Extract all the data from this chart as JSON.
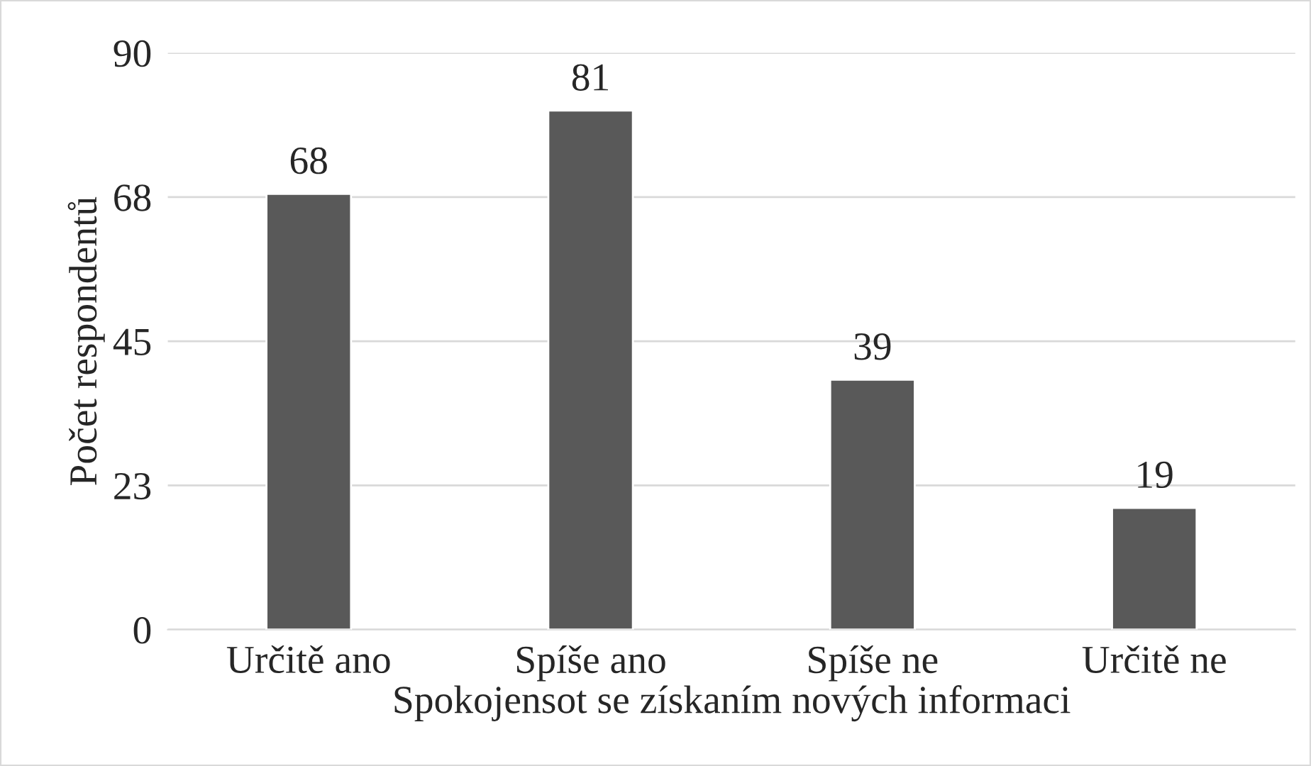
{
  "chart_data": {
    "type": "bar",
    "xlabel": "Spokojensot se získaním nových informaci",
    "ylabel": "Počet respondentů",
    "categories": [
      "Určitě ano",
      "Spíše ano",
      "Spíše ne",
      "Určitě ne"
    ],
    "values": [
      68,
      81,
      39,
      19
    ],
    "color": "#595959",
    "ylim": [
      0,
      90
    ],
    "yticks": [
      0,
      {
        "value": 22.5,
        "label": "23"
      },
      45,
      {
        "value": 67.5,
        "label": "68"
      },
      90
    ],
    "grid": "y",
    "data_labels": true
  }
}
